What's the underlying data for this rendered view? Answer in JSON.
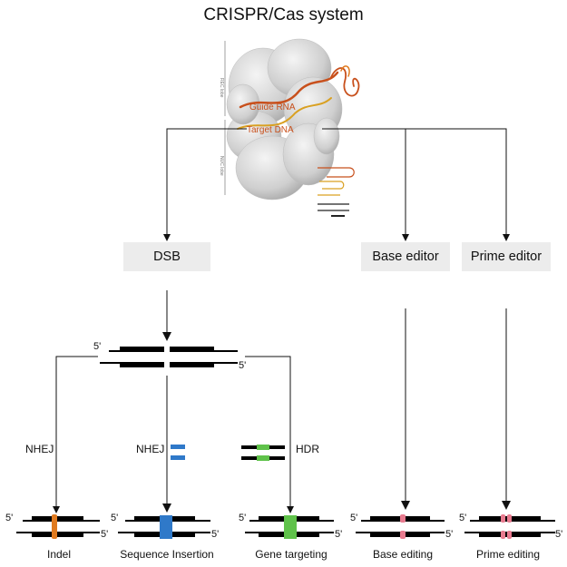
{
  "title": "CRISPR/Cas system",
  "structure_labels": {
    "guide_rna": "Guide RNA",
    "target_dna": "Target DNA",
    "rec_lobe": "REC lobe",
    "nuc_lobe": "NUC lobe"
  },
  "editors": {
    "dsb": "DSB",
    "base_editor": "Base editor",
    "prime_editor": "Prime editor"
  },
  "repair": {
    "nhej_left": "NHEJ",
    "nhej_middle": "NHEJ",
    "hdr": "HDR"
  },
  "strand_ends": {
    "five_prime": "5'"
  },
  "outcomes": {
    "indel": "Indel",
    "insertion": "Sequence Insertion",
    "targeting": "Gene targeting",
    "base_editing": "Base editing",
    "prime_editing": "Prime editing"
  },
  "colors": {
    "indel": "#e07a1f",
    "insertion": "#2f79c9",
    "targeting": "#5fc24a",
    "editing": "#e87b8f",
    "rna": "#c8501c",
    "protein": "#d9d9d9"
  }
}
